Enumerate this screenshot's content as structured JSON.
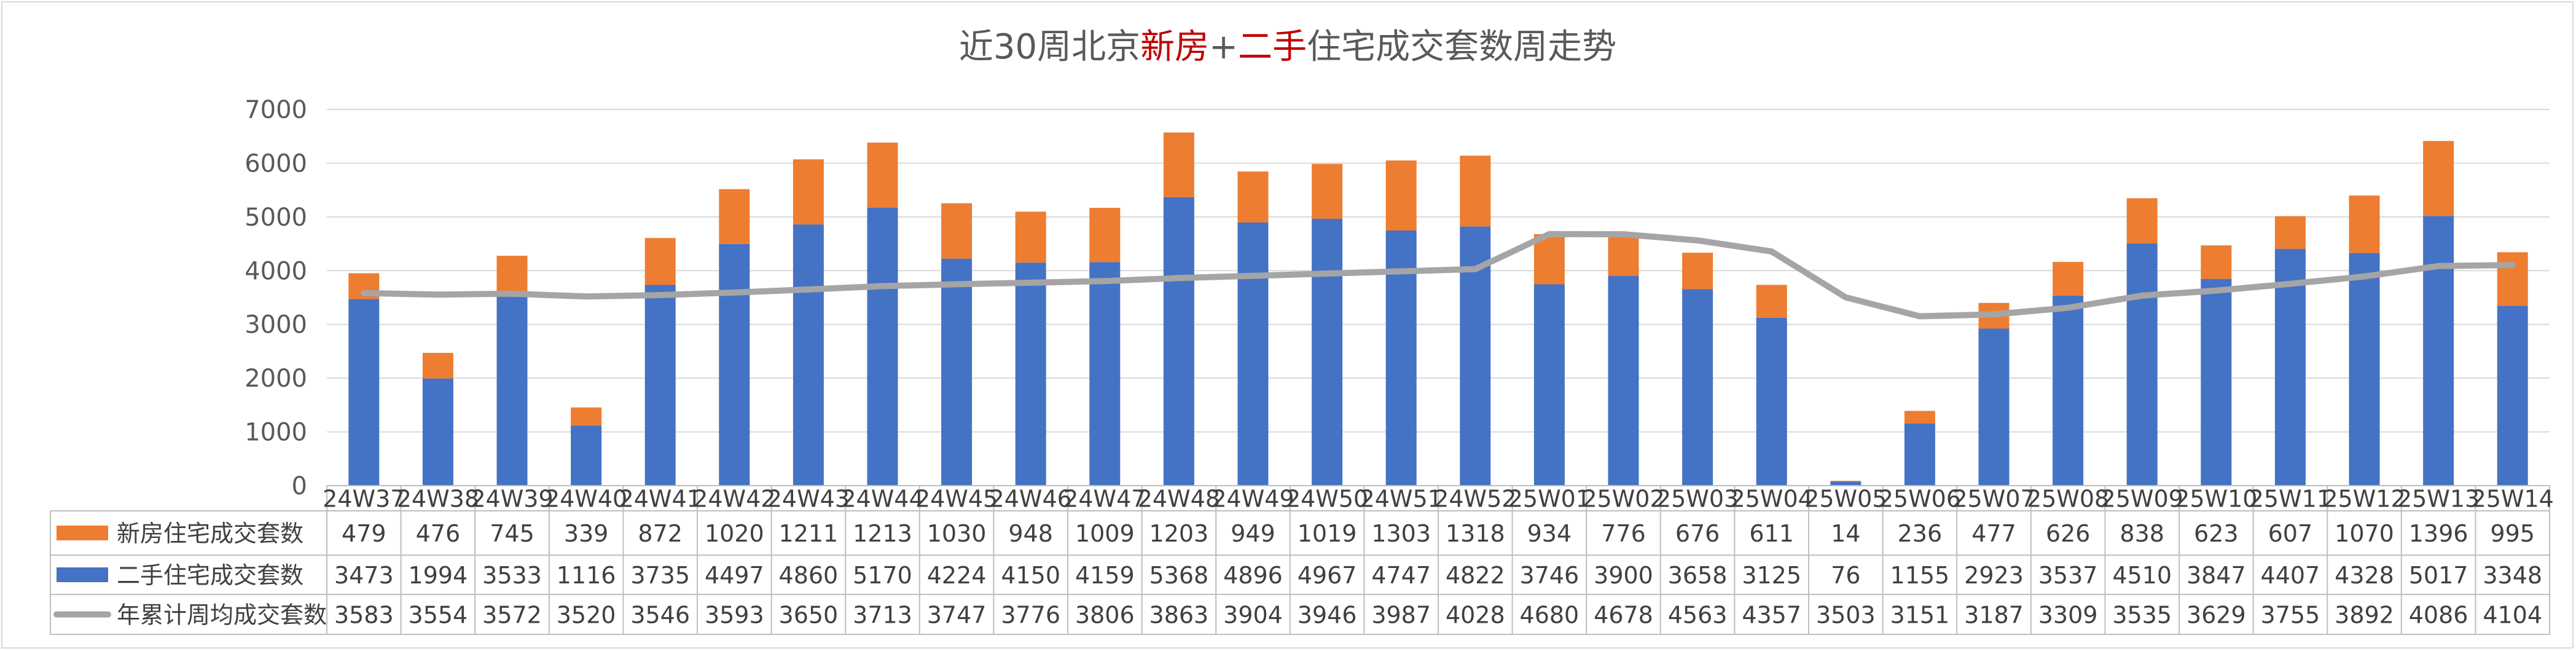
{
  "chart_data": {
    "type": "bar",
    "title_segments": [
      {
        "text": "近30周北京",
        "color": "#595959"
      },
      {
        "text": "新房",
        "color": "#c00000"
      },
      {
        "text": "+",
        "color": "#595959"
      },
      {
        "text": "二手",
        "color": "#c00000"
      },
      {
        "text": "住宅成交套数周走势",
        "color": "#595959"
      }
    ],
    "stacked": true,
    "ylim": [
      0,
      7000
    ],
    "yticks": [
      0,
      1000,
      2000,
      3000,
      4000,
      5000,
      6000,
      7000
    ],
    "grid": true,
    "legend_placement": "data-table-left",
    "categories": [
      "24W37",
      "24W38",
      "24W39",
      "24W40",
      "24W41",
      "24W42",
      "24W43",
      "24W44",
      "24W45",
      "24W46",
      "24W47",
      "24W48",
      "24W49",
      "24W50",
      "24W51",
      "24W52",
      "25W01",
      "25W02",
      "25W03",
      "25W04",
      "25W05",
      "25W06",
      "25W07",
      "25W08",
      "25W09",
      "25W10",
      "25W11",
      "25W12",
      "25W13",
      "25W14"
    ],
    "series": [
      {
        "name": "新房住宅成交套数",
        "kind": "bar",
        "color": "#ed7d31",
        "values": [
          479,
          476,
          745,
          339,
          872,
          1020,
          1211,
          1213,
          1030,
          948,
          1009,
          1203,
          949,
          1019,
          1303,
          1318,
          934,
          776,
          676,
          611,
          14,
          236,
          477,
          626,
          838,
          623,
          607,
          1070,
          1396,
          995
        ]
      },
      {
        "name": "二手住宅成交套数",
        "kind": "bar",
        "color": "#4472c4",
        "values": [
          3473,
          1994,
          3533,
          1116,
          3735,
          4497,
          4860,
          5170,
          4224,
          4150,
          4159,
          5368,
          4896,
          4967,
          4747,
          4822,
          3746,
          3900,
          3658,
          3125,
          76,
          1155,
          2923,
          3537,
          4510,
          3847,
          4407,
          4328,
          5017,
          3348
        ]
      },
      {
        "name": "年累计周均成交套数",
        "kind": "line",
        "color": "#a5a5a5",
        "values": [
          3583,
          3554,
          3572,
          3520,
          3546,
          3593,
          3650,
          3713,
          3747,
          3776,
          3806,
          3863,
          3904,
          3946,
          3987,
          4028,
          4680,
          4678,
          4563,
          4357,
          3503,
          3151,
          3187,
          3309,
          3535,
          3629,
          3755,
          3892,
          4086,
          4104
        ]
      }
    ]
  }
}
